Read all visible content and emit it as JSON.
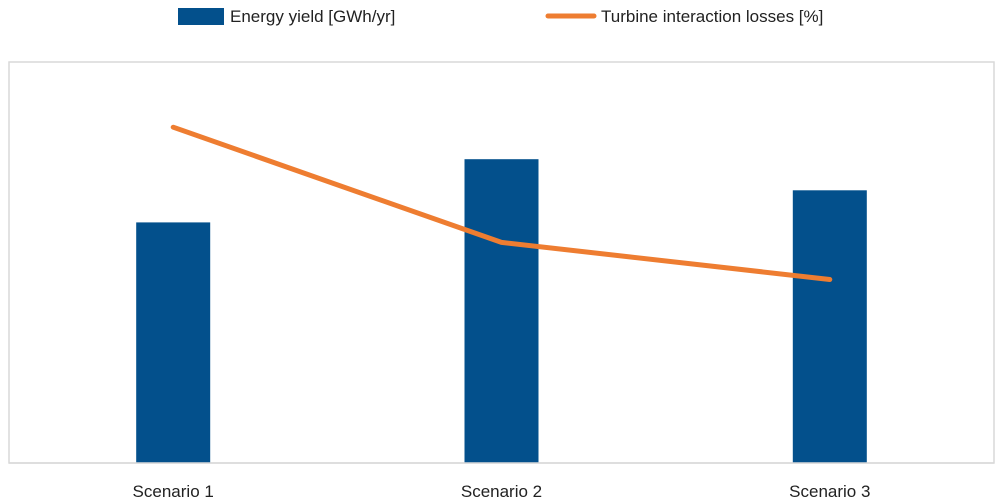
{
  "chart_data": {
    "type": "bar",
    "categories": [
      "Scenario 1",
      "Scenario 2",
      "Scenario 3"
    ],
    "series": [
      {
        "name": "Energy yield [GWh/yr]",
        "kind": "bar",
        "values": [
          240,
          303,
          272
        ],
        "color": "#03508c"
      },
      {
        "name": "Turbine interaction losses [%]",
        "kind": "line",
        "values": [
          335,
          220,
          183
        ],
        "color": "#ee7d31"
      }
    ],
    "ylim": [
      0,
      400
    ],
    "legend_position": "top-center",
    "grid": false
  }
}
